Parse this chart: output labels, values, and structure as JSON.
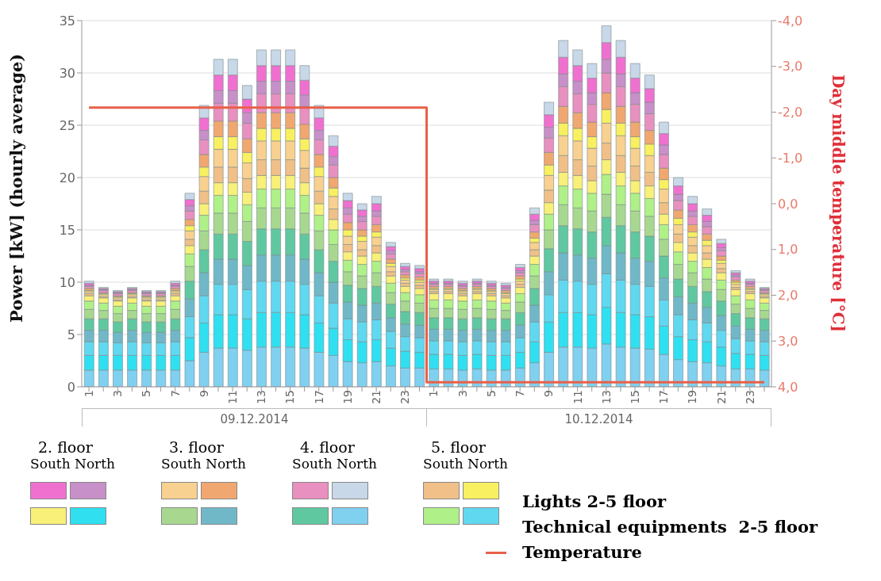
{
  "chart_data": {
    "type": "bar",
    "stacked": true,
    "ylabel": "Power [kW] (hourly average)",
    "y2label": "Day middle temperature [°C]",
    "categories": [
      "1",
      null,
      "3",
      null,
      "5",
      null,
      "7",
      null,
      "9",
      null,
      "11",
      null,
      "13",
      null,
      "15",
      null,
      "17",
      null,
      "19",
      null,
      "21",
      null,
      "23",
      null,
      "1",
      null,
      "3",
      null,
      "5",
      null,
      "7",
      null,
      "9",
      null,
      "11",
      null,
      "13",
      null,
      "15",
      null,
      "17",
      null,
      "19",
      null,
      "21",
      null,
      "23",
      null
    ],
    "ylim": [
      0,
      35
    ],
    "yticks": [
      0,
      5,
      10,
      15,
      20,
      25,
      30,
      35
    ],
    "y2lim": [
      4,
      -4
    ],
    "y2ticks": [
      {
        "value": -4,
        "label": "-4,0"
      },
      {
        "value": -3,
        "label": "-3,0"
      },
      {
        "value": -2,
        "label": "-2,0"
      },
      {
        "value": -1,
        "label": "-1,0"
      },
      {
        "value": 0,
        "label": "0,0"
      },
      {
        "value": 1,
        "label": "1,0"
      },
      {
        "value": 2,
        "label": "2,0"
      },
      {
        "value": 3,
        "label": "3,0"
      },
      {
        "value": 4,
        "label": "4,0"
      }
    ],
    "grid": "y",
    "legend": "bottom",
    "annotations": [
      "09.12.2014",
      "10.12.2014",
      "2. floor",
      "South North",
      "3. floor",
      "South North",
      "4. floor",
      "South North",
      "5. floor",
      "South North",
      "Lights 2-5 floor",
      "Technical equipments  2-5 floor"
    ],
    "series": [
      {
        "color": "#80d0f0",
        "values": [
          1.6,
          1.6,
          1.6,
          1.6,
          1.6,
          1.6,
          1.6,
          2.5,
          3.3,
          3.7,
          3.7,
          3.5,
          3.8,
          3.8,
          3.8,
          3.7,
          3.3,
          3.0,
          2.4,
          2.3,
          2.4,
          2.0,
          1.8,
          1.8,
          1.7,
          1.7,
          1.6,
          1.7,
          1.6,
          1.6,
          1.8,
          2.3,
          3.3,
          3.8,
          3.8,
          3.7,
          4.1,
          3.8,
          3.7,
          3.6,
          3.1,
          2.6,
          2.4,
          2.3,
          2.0,
          1.7,
          1.7,
          1.6
        ]
      },
      {
        "color": "#30e0f0",
        "values": [
          1.4,
          1.4,
          1.4,
          1.4,
          1.4,
          1.4,
          1.4,
          2.2,
          2.8,
          3.2,
          3.2,
          3.0,
          3.3,
          3.3,
          3.3,
          3.2,
          2.8,
          2.6,
          2.1,
          2.0,
          2.1,
          1.7,
          1.6,
          1.5,
          1.4,
          1.4,
          1.4,
          1.4,
          1.4,
          1.4,
          1.5,
          2.0,
          2.9,
          3.3,
          3.3,
          3.2,
          3.5,
          3.3,
          3.2,
          3.1,
          2.7,
          2.2,
          2.1,
          2.0,
          1.8,
          1.5,
          1.4,
          1.4
        ]
      },
      {
        "color": "#60d8f0",
        "values": [
          1.3,
          1.3,
          1.2,
          1.3,
          1.2,
          1.2,
          1.3,
          2.0,
          2.6,
          2.9,
          2.9,
          2.8,
          3.0,
          3.0,
          3.0,
          2.9,
          2.6,
          2.4,
          2.0,
          1.9,
          1.9,
          1.6,
          1.4,
          1.4,
          1.3,
          1.3,
          1.3,
          1.3,
          1.3,
          1.3,
          1.4,
          1.9,
          2.6,
          3.1,
          3.0,
          2.9,
          3.2,
          3.1,
          2.9,
          2.9,
          2.5,
          2.1,
          1.9,
          1.8,
          1.6,
          1.4,
          1.3,
          1.3
        ]
      },
      {
        "color": "#70b8c8",
        "values": [
          1.1,
          1.1,
          1.0,
          1.1,
          1.0,
          1.0,
          1.1,
          1.7,
          2.2,
          2.4,
          2.4,
          2.3,
          2.5,
          2.5,
          2.5,
          2.4,
          2.2,
          2.0,
          1.6,
          1.6,
          1.6,
          1.3,
          1.2,
          1.2,
          1.1,
          1.1,
          1.1,
          1.1,
          1.1,
          1.1,
          1.2,
          1.6,
          2.2,
          2.6,
          2.5,
          2.5,
          2.7,
          2.6,
          2.5,
          2.4,
          2.1,
          1.7,
          1.6,
          1.5,
          1.4,
          1.2,
          1.1,
          1.1
        ]
      },
      {
        "color": "#60c8a0",
        "values": [
          1.1,
          1.1,
          1.0,
          1.1,
          1.0,
          1.0,
          1.1,
          1.7,
          2.2,
          2.4,
          2.4,
          2.3,
          2.5,
          2.5,
          2.5,
          2.4,
          2.2,
          2.0,
          1.6,
          1.6,
          1.6,
          1.3,
          1.2,
          1.2,
          1.1,
          1.1,
          1.1,
          1.1,
          1.1,
          1.1,
          1.2,
          1.6,
          2.2,
          2.6,
          2.5,
          2.5,
          2.7,
          2.6,
          2.5,
          2.4,
          2.1,
          1.7,
          1.6,
          1.5,
          1.4,
          1.2,
          1.1,
          1.1
        ]
      },
      {
        "color": "#a8d890",
        "values": [
          0.9,
          0.8,
          0.8,
          0.8,
          0.8,
          0.8,
          0.9,
          1.4,
          1.8,
          2.0,
          2.0,
          1.9,
          2.0,
          2.0,
          2.0,
          2.0,
          1.8,
          1.6,
          1.3,
          1.2,
          1.3,
          1.1,
          1.0,
          0.9,
          0.9,
          0.9,
          0.9,
          0.9,
          0.9,
          0.8,
          1.0,
          1.2,
          1.8,
          2.0,
          2.0,
          2.0,
          2.2,
          2.0,
          2.0,
          1.9,
          1.6,
          1.4,
          1.3,
          1.2,
          1.1,
          0.9,
          0.9,
          0.8
        ]
      },
      {
        "color": "#b0f088",
        "values": [
          0.8,
          0.7,
          0.7,
          0.7,
          0.7,
          0.7,
          0.8,
          1.2,
          1.5,
          1.7,
          1.7,
          1.6,
          1.8,
          1.8,
          1.8,
          1.7,
          1.5,
          1.4,
          1.1,
          1.1,
          1.1,
          0.9,
          0.8,
          0.8,
          0.8,
          0.8,
          0.8,
          0.8,
          0.8,
          0.7,
          0.8,
          1.1,
          1.5,
          1.8,
          1.8,
          1.7,
          1.9,
          1.8,
          1.7,
          1.7,
          1.4,
          1.2,
          1.1,
          1.1,
          0.9,
          0.8,
          0.8,
          0.7
        ]
      },
      {
        "color": "#f8f078",
        "values": [
          0.5,
          0.5,
          0.5,
          0.5,
          0.5,
          0.5,
          0.5,
          0.8,
          1.1,
          1.2,
          1.2,
          1.2,
          1.3,
          1.3,
          1.3,
          1.2,
          1.1,
          1.0,
          0.8,
          0.8,
          0.8,
          0.7,
          0.6,
          0.6,
          0.6,
          0.6,
          0.5,
          0.6,
          0.5,
          0.5,
          0.6,
          0.8,
          1.1,
          1.3,
          1.3,
          1.2,
          1.4,
          1.3,
          1.2,
          1.2,
          1.0,
          0.9,
          0.8,
          0.8,
          0.7,
          0.6,
          0.6,
          0.5
        ]
      },
      {
        "color": "#f0c088",
        "values": [
          0.2,
          0.1,
          0.1,
          0.1,
          0.1,
          0.1,
          0.2,
          0.6,
          1.2,
          1.5,
          1.5,
          1.3,
          1.5,
          1.5,
          1.5,
          1.4,
          1.2,
          1.0,
          0.7,
          0.6,
          0.7,
          0.4,
          0.3,
          0.3,
          0.2,
          0.2,
          0.2,
          0.2,
          0.2,
          0.2,
          0.3,
          0.6,
          1.2,
          1.6,
          1.5,
          1.4,
          1.6,
          1.6,
          1.4,
          1.3,
          1.1,
          0.8,
          0.7,
          0.6,
          0.4,
          0.2,
          0.2,
          0.1
        ]
      },
      {
        "color": "#f8d090",
        "values": [
          0.2,
          0.2,
          0.2,
          0.2,
          0.2,
          0.2,
          0.2,
          0.8,
          1.4,
          1.7,
          1.7,
          1.5,
          1.8,
          1.8,
          1.8,
          1.7,
          1.4,
          1.2,
          0.8,
          0.8,
          0.8,
          0.5,
          0.3,
          0.3,
          0.2,
          0.2,
          0.2,
          0.2,
          0.2,
          0.2,
          0.3,
          0.7,
          1.4,
          1.9,
          1.8,
          1.7,
          1.9,
          1.9,
          1.7,
          1.6,
          1.3,
          0.9,
          0.8,
          0.7,
          0.5,
          0.3,
          0.2,
          0.2
        ]
      },
      {
        "color": "#f8f060",
        "values": [
          0.1,
          0.1,
          0.1,
          0.1,
          0.1,
          0.1,
          0.1,
          0.5,
          0.9,
          1.2,
          1.2,
          1.0,
          1.2,
          1.2,
          1.2,
          1.1,
          0.9,
          0.8,
          0.6,
          0.5,
          0.5,
          0.3,
          0.2,
          0.2,
          0.1,
          0.1,
          0.1,
          0.1,
          0.1,
          0.1,
          0.2,
          0.4,
          1.0,
          1.2,
          1.2,
          1.1,
          1.3,
          1.2,
          1.1,
          1.1,
          0.9,
          0.6,
          0.5,
          0.5,
          0.3,
          0.2,
          0.1,
          0.1
        ]
      },
      {
        "color": "#f0a870",
        "values": [
          0.2,
          0.1,
          0.1,
          0.1,
          0.1,
          0.1,
          0.2,
          0.6,
          1.2,
          1.5,
          1.5,
          1.3,
          1.5,
          1.5,
          1.5,
          1.4,
          1.2,
          1.0,
          0.7,
          0.6,
          0.7,
          0.4,
          0.3,
          0.3,
          0.2,
          0.2,
          0.2,
          0.2,
          0.2,
          0.2,
          0.3,
          0.6,
          1.2,
          1.6,
          1.5,
          1.4,
          1.6,
          1.6,
          1.4,
          1.3,
          1.1,
          0.8,
          0.7,
          0.6,
          0.4,
          0.2,
          0.2,
          0.1
        ]
      },
      {
        "color": "#e890c0",
        "values": [
          0.2,
          0.2,
          0.2,
          0.2,
          0.2,
          0.2,
          0.2,
          0.8,
          1.4,
          1.7,
          1.7,
          1.5,
          1.8,
          1.8,
          1.8,
          1.7,
          1.4,
          1.2,
          0.8,
          0.8,
          0.8,
          0.5,
          0.3,
          0.3,
          0.2,
          0.2,
          0.2,
          0.2,
          0.2,
          0.2,
          0.3,
          0.7,
          1.4,
          1.9,
          1.8,
          1.7,
          1.9,
          1.9,
          1.7,
          1.6,
          1.3,
          0.9,
          0.8,
          0.7,
          0.5,
          0.3,
          0.2,
          0.2
        ]
      },
      {
        "color": "#c890c8",
        "values": [
          0.1,
          0.1,
          0.1,
          0.1,
          0.1,
          0.1,
          0.1,
          0.5,
          0.9,
          1.2,
          1.2,
          1.0,
          1.2,
          1.2,
          1.2,
          1.1,
          0.9,
          0.8,
          0.6,
          0.5,
          0.5,
          0.3,
          0.2,
          0.2,
          0.1,
          0.1,
          0.1,
          0.1,
          0.1,
          0.1,
          0.2,
          0.4,
          1.0,
          1.2,
          1.2,
          1.1,
          1.3,
          1.2,
          1.1,
          1.1,
          0.9,
          0.6,
          0.5,
          0.5,
          0.3,
          0.2,
          0.1,
          0.1
        ]
      },
      {
        "color": "#f070d0",
        "values": [
          0.2,
          0.1,
          0.1,
          0.1,
          0.1,
          0.1,
          0.2,
          0.6,
          1.2,
          1.5,
          1.5,
          1.3,
          1.5,
          1.5,
          1.5,
          1.4,
          1.2,
          1.0,
          0.7,
          0.6,
          0.7,
          0.4,
          0.3,
          0.3,
          0.2,
          0.2,
          0.2,
          0.2,
          0.2,
          0.2,
          0.3,
          0.6,
          1.2,
          1.6,
          1.5,
          1.4,
          1.6,
          1.6,
          1.4,
          1.3,
          1.1,
          0.8,
          0.7,
          0.6,
          0.4,
          0.2,
          0.2,
          0.1
        ]
      },
      {
        "color": "#c8d8e8",
        "values": [
          0.2,
          0.1,
          0.1,
          0.1,
          0.1,
          0.1,
          0.2,
          0.6,
          1.2,
          1.5,
          1.5,
          1.3,
          1.5,
          1.5,
          1.5,
          1.4,
          1.2,
          1.0,
          0.7,
          0.6,
          0.7,
          0.4,
          0.3,
          0.3,
          0.2,
          0.2,
          0.2,
          0.2,
          0.2,
          0.2,
          0.3,
          0.6,
          1.2,
          1.6,
          1.5,
          1.4,
          1.6,
          1.6,
          1.4,
          1.3,
          1.1,
          0.8,
          0.7,
          0.6,
          0.4,
          0.2,
          0.2,
          0.1
        ]
      },
      {
        "type": "step",
        "axis": "y2",
        "name": "Temperature",
        "color": "#e8604a",
        "values": [
          -2.1,
          -2.1,
          -2.1,
          -2.1,
          -2.1,
          -2.1,
          -2.1,
          -2.1,
          -2.1,
          -2.1,
          -2.1,
          -2.1,
          -2.1,
          -2.1,
          -2.1,
          -2.1,
          -2.1,
          -2.1,
          -2.1,
          -2.1,
          -2.1,
          -2.1,
          -2.1,
          -2.1,
          3.9,
          3.9,
          3.9,
          3.9,
          3.9,
          3.9,
          3.9,
          3.9,
          3.9,
          3.9,
          3.9,
          3.9,
          3.9,
          3.9,
          3.9,
          3.9,
          3.9,
          3.9,
          3.9,
          3.9,
          3.9,
          3.9,
          3.9,
          3.9
        ]
      }
    ]
  }
}
